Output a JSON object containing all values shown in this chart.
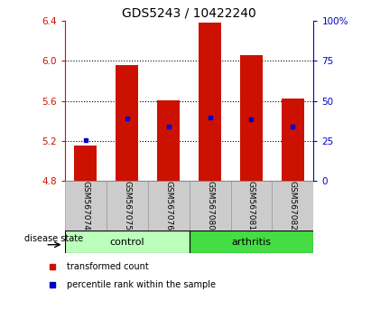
{
  "title": "GDS5243 / 10422240",
  "samples": [
    "GSM567074",
    "GSM567075",
    "GSM567076",
    "GSM567080",
    "GSM567081",
    "GSM567082"
  ],
  "bar_base": 4.8,
  "bar_tops": [
    5.15,
    5.955,
    5.605,
    6.385,
    6.055,
    5.625
  ],
  "blue_dot_values": [
    5.205,
    5.42,
    5.345,
    5.435,
    5.415,
    5.345
  ],
  "ylim_left": [
    4.8,
    6.4
  ],
  "yticks_left": [
    4.8,
    5.2,
    5.6,
    6.0,
    6.4
  ],
  "ylim_right": [
    0,
    100
  ],
  "yticks_right": [
    0,
    25,
    50,
    75,
    100
  ],
  "ytick_right_labels": [
    "0",
    "25",
    "50",
    "75",
    "100%"
  ],
  "bar_color": "#cc1100",
  "dot_color": "#0000cc",
  "control_color": "#bbffbb",
  "arthritis_color": "#44dd44",
  "label_color_left": "#cc1100",
  "label_color_right": "#0000cc",
  "bar_width": 0.55,
  "legend_red_label": "transformed count",
  "legend_blue_label": "percentile rank within the sample",
  "disease_state_label": "disease state",
  "control_label": "control",
  "arthritis_label": "arthritis",
  "title_fontsize": 10,
  "tick_fontsize": 7.5,
  "sample_fontsize": 6.5,
  "legend_fontsize": 7,
  "disease_fontsize": 8
}
